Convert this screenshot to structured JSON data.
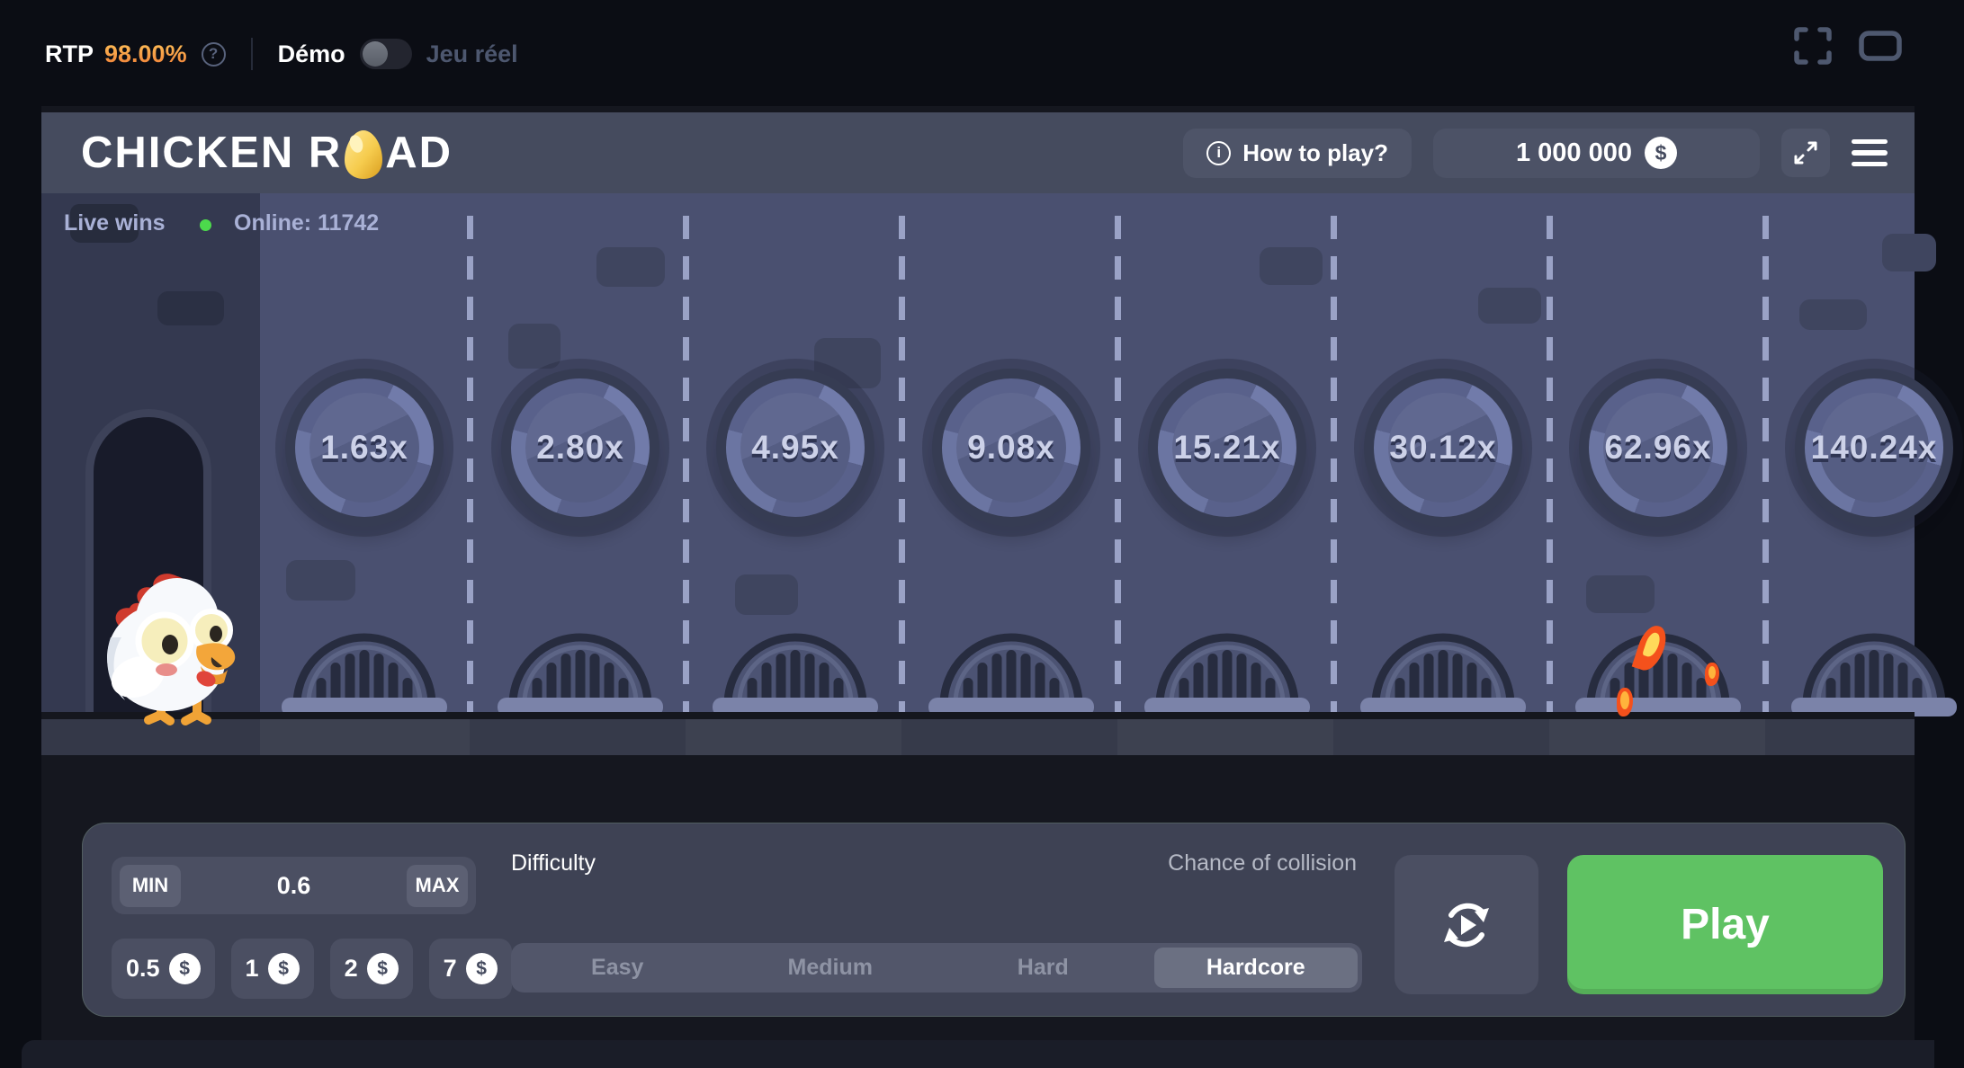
{
  "topbar": {
    "rtp_label": "RTP",
    "rtp_value": "98.00%",
    "demo_label": "Démo",
    "real_label": "Jeu réel",
    "toggle_state": "demo"
  },
  "header": {
    "logo_prefix": "CHICKEN R",
    "logo_suffix": "AD",
    "how_to_play_label": "How to play?",
    "balance_value": "1 000 000",
    "currency_symbol": "$"
  },
  "live": {
    "live_wins_label": "Live wins",
    "online_label": "Online: 11742"
  },
  "game": {
    "multipliers": [
      "1.63x",
      "2.80x",
      "4.95x",
      "9.08x",
      "15.21x",
      "30.12x",
      "62.96x",
      "140.24x"
    ],
    "flame_lane_index": 6
  },
  "controls": {
    "min_label": "MIN",
    "max_label": "MAX",
    "bet_value": "0.6",
    "chips": [
      "0.5",
      "1",
      "2",
      "7"
    ],
    "difficulty_label": "Difficulty",
    "collision_label": "Chance of collision",
    "tabs": [
      "Easy",
      "Medium",
      "Hard",
      "Hardcore"
    ],
    "active_tab": "Hardcore",
    "play_label": "Play"
  },
  "colors": {
    "accent_green": "#5fc263",
    "rtp_gold": "#f5a03f",
    "road": "#4a5070",
    "online_dot": "#4cda4c"
  }
}
